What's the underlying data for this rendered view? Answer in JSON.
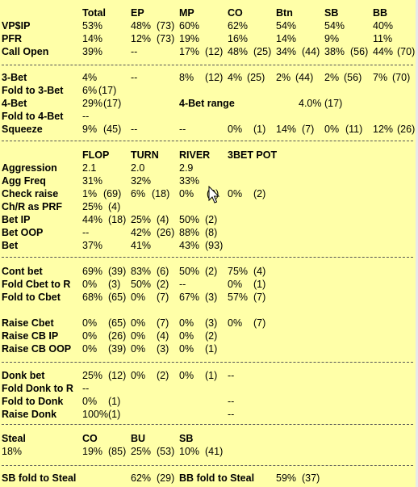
{
  "colors": {
    "background": "#ffffa8",
    "text": "#000000",
    "separator": "#555555"
  },
  "section1": {
    "header": [
      "Total",
      "EP",
      "MP",
      "CO",
      "Btn",
      "SB",
      "BB"
    ],
    "rows": [
      {
        "label": "VP$IP",
        "cells": [
          "53%",
          "48%",
          "(73)",
          "60%",
          "62%",
          "54%",
          "54%",
          "40%"
        ]
      },
      {
        "label": "PFR",
        "cells": [
          "14%",
          "12%",
          "(73)",
          "19%",
          "16%",
          "14%",
          "9%",
          "11%"
        ]
      },
      {
        "label": "Call Open",
        "cells": [
          "39%",
          "--",
          "17%",
          "(12)",
          "48%",
          "(25)",
          "34%",
          "(44)",
          "38%",
          "(56)",
          "44%",
          "(70)"
        ]
      }
    ]
  },
  "section2": {
    "rows": [
      {
        "label": "3-Bet",
        "cells": [
          "4%",
          "--",
          "8%",
          "(12)",
          "4%",
          "(25)",
          "2%",
          "(44)",
          "2%",
          "(56)",
          "7%",
          "(70)"
        ]
      },
      {
        "label": "Fold to 3-Bet",
        "cells": [
          "6%",
          "(17)"
        ]
      },
      {
        "label": "4-Bet",
        "cells": [
          "29%",
          "(17)"
        ],
        "extra_label": "4-Bet range",
        "extra_cells": [
          "4.0%",
          "(17)"
        ]
      },
      {
        "label": "Fold to 4-Bet",
        "cells": [
          "--"
        ]
      },
      {
        "label": "Squeeze",
        "cells": [
          "9%",
          "(45)",
          "--",
          "--",
          "0%",
          "(1)",
          "14%",
          "(7)",
          "0%",
          "(11)",
          "12%",
          "(26)"
        ]
      }
    ]
  },
  "section3": {
    "header": [
      "FLOP",
      "TURN",
      "RIVER",
      "3BET POT"
    ],
    "rows": [
      {
        "label": "Aggression",
        "cells": [
          "2.1",
          "2.0",
          "2.9"
        ]
      },
      {
        "label": "Agg Freq",
        "cells": [
          "31%",
          "32%",
          "33%"
        ]
      },
      {
        "label": "Check raise",
        "cells": [
          "1%",
          "(69)",
          "6%",
          "(18)",
          "0%",
          "(2)",
          "0%",
          "(2)"
        ]
      },
      {
        "label": "Ch/R as PRF",
        "cells": [
          "25%",
          "(4)"
        ]
      },
      {
        "label": "Bet IP",
        "cells": [
          "44%",
          "(18)",
          "25%",
          "(4)",
          "50%",
          "(2)"
        ]
      },
      {
        "label": "Bet OOP",
        "cells": [
          "--",
          "42%",
          "(26)",
          "88%",
          "(8)"
        ]
      },
      {
        "label": "Bet",
        "cells": [
          "37%",
          "41%",
          "43%",
          "(93)"
        ]
      }
    ]
  },
  "section4": {
    "rows": [
      {
        "label": "Cont bet",
        "cells": [
          "69%",
          "(39)",
          "83%",
          "(6)",
          "50%",
          "(2)",
          "75%",
          "(4)"
        ]
      },
      {
        "label": "Fold Cbet to R",
        "cells": [
          "0%",
          "(3)",
          "50%",
          "(2)",
          "--",
          "0%",
          "(1)"
        ]
      },
      {
        "label": "Fold to Cbet",
        "cells": [
          "68%",
          "(65)",
          "0%",
          "(7)",
          "67%",
          "(3)",
          "57%",
          "(7)"
        ]
      },
      {
        "label": "Raise Cbet",
        "cells": [
          "0%",
          "(65)",
          "0%",
          "(7)",
          "0%",
          "(3)",
          "0%",
          "(7)"
        ]
      },
      {
        "label": "Raise CB IP",
        "cells": [
          "0%",
          "(26)",
          "0%",
          "(4)",
          "0%",
          "(2)"
        ]
      },
      {
        "label": "Raise CB OOP",
        "cells": [
          "0%",
          "(39)",
          "0%",
          "(3)",
          "0%",
          "(1)"
        ]
      }
    ]
  },
  "section5": {
    "rows": [
      {
        "label": "Donk bet",
        "cells": [
          "25%",
          "(12)",
          "0%",
          "(2)",
          "0%",
          "(1)",
          "--"
        ]
      },
      {
        "label": "Fold Donk to R",
        "cells": [
          "--"
        ]
      },
      {
        "label": "Fold to Donk",
        "cells": [
          "0%",
          "(1)",
          "--"
        ]
      },
      {
        "label": "Raise Donk",
        "cells": [
          "100%(1)",
          "--"
        ]
      }
    ]
  },
  "section6": {
    "label": "Steal",
    "value": "18%",
    "header": [
      "CO",
      "BU",
      "SB"
    ],
    "cells": [
      "19%",
      "(85)",
      "25%",
      "(53)",
      "10%",
      "(41)"
    ]
  },
  "section7": {
    "sb_label": "SB fold to Steal",
    "sb_value": "62%",
    "sb_count": "(29)",
    "bb_label": "BB fold to Steal",
    "bb_value": "59%",
    "bb_count": "(37)"
  }
}
